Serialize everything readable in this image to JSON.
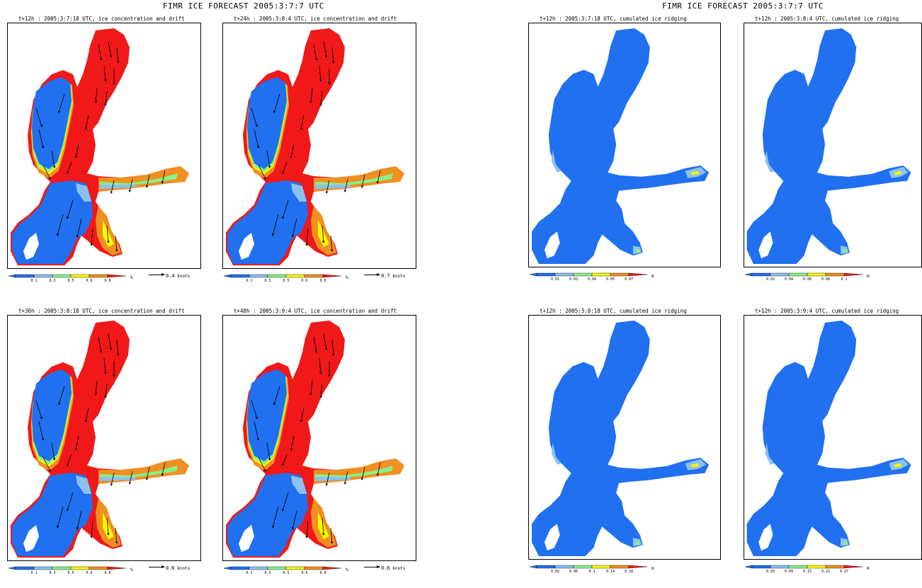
{
  "titles": {
    "left": "FIMR ICE FORECAST 2005:3:7:7 UTC",
    "right": "FIMR ICE FORECAST 2005:3:7:7 UTC"
  },
  "colors": {
    "ocean": "#2070f0",
    "light_blue": "#8cc0f0",
    "green": "#88f088",
    "yellow": "#f8f800",
    "orange": "#f09020",
    "red": "#f01818",
    "arrow": "#000000"
  },
  "panels": [
    {
      "id": "p1",
      "kind": "concentration",
      "title": "t+12h : 2005:3:7:18 UTC, ice concentration and drift",
      "legend_ticks": [
        "0.1",
        "0.3",
        "0.5",
        "0.6",
        "0.8"
      ],
      "unit": "%",
      "arrow_value": "0.4",
      "arrow_unit": "knots"
    },
    {
      "id": "p2",
      "kind": "concentration",
      "title": "t+24h : 2005:3:8:4 UTC, ice concentration and drift",
      "legend_ticks": [
        "0.1",
        "0.3",
        "0.5",
        "0.6",
        "0.8"
      ],
      "unit": "%",
      "arrow_value": "0.7",
      "arrow_unit": "knots"
    },
    {
      "id": "p3",
      "kind": "ridging",
      "title": "t+12h : 2005:3:7:18 UTC, cumulated ice ridging",
      "legend_ticks": [
        "0.01",
        "0.03",
        "0.04",
        "0.05",
        "0.07"
      ],
      "unit": "m"
    },
    {
      "id": "p4",
      "kind": "ridging",
      "title": "t+12h : 2005:3:8:4 UTC, cumulated ice ridging",
      "legend_ticks": [
        "0.02",
        "0.04",
        "0.06",
        "0.08",
        "0.1"
      ],
      "unit": "m"
    },
    {
      "id": "p5",
      "kind": "concentration",
      "title": "t+36h : 2005:3:8:18 UTC, ice concentration and drift",
      "legend_ticks": [
        "0.1",
        "0.3",
        "0.5",
        "0.6",
        "0.8"
      ],
      "unit": "%",
      "arrow_value": "0.6",
      "arrow_unit": "knots"
    },
    {
      "id": "p6",
      "kind": "concentration",
      "title": "t+48h : 2005:3:9:4 UTC, ice concentration and drift",
      "legend_ticks": [
        "0.1",
        "0.3",
        "0.5",
        "0.6",
        "0.8"
      ],
      "unit": "%",
      "arrow_value": "0.6",
      "arrow_unit": "knots"
    },
    {
      "id": "p7",
      "kind": "ridging",
      "title": "t+12h : 2005:3:8:18 UTC, cumulated ice ridging",
      "legend_ticks": [
        "0.02",
        "0.06",
        "0.1",
        "0.14",
        "0.18"
      ],
      "unit": "m"
    },
    {
      "id": "p8",
      "kind": "ridging",
      "title": "t+12h : 2005:3:9:4 UTC, cumulated ice ridging",
      "legend_ticks": [
        "0.03",
        "0.09",
        "0.15",
        "0.21",
        "0.27"
      ],
      "unit": "m"
    }
  ]
}
